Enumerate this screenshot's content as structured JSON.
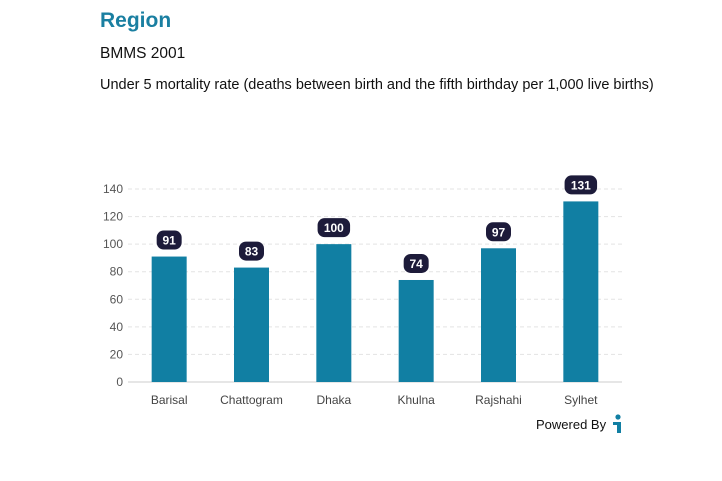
{
  "header": {
    "title": "Region",
    "subtitle": "BMMS 2001",
    "description": "Under 5 mortality rate (deaths between birth and the fifth birthday per 1,000 live births)"
  },
  "footer": {
    "powered_by": "Powered By",
    "logo_icon": "info-person-icon"
  },
  "colors": {
    "bar": "#117fa3",
    "label_bg": "#1d1b3a",
    "grid": "#e3e3e3",
    "title": "#1a7fa1"
  },
  "chart_data": {
    "type": "bar",
    "categories": [
      "Barisal",
      "Chattogram",
      "Dhaka",
      "Khulna",
      "Rajshahi",
      "Sylhet"
    ],
    "values": [
      91,
      83,
      100,
      74,
      97,
      131
    ],
    "yticks": [
      0,
      20,
      40,
      60,
      80,
      100,
      120,
      140
    ],
    "ylim": [
      0,
      140
    ],
    "grid": true,
    "legend": "none"
  }
}
